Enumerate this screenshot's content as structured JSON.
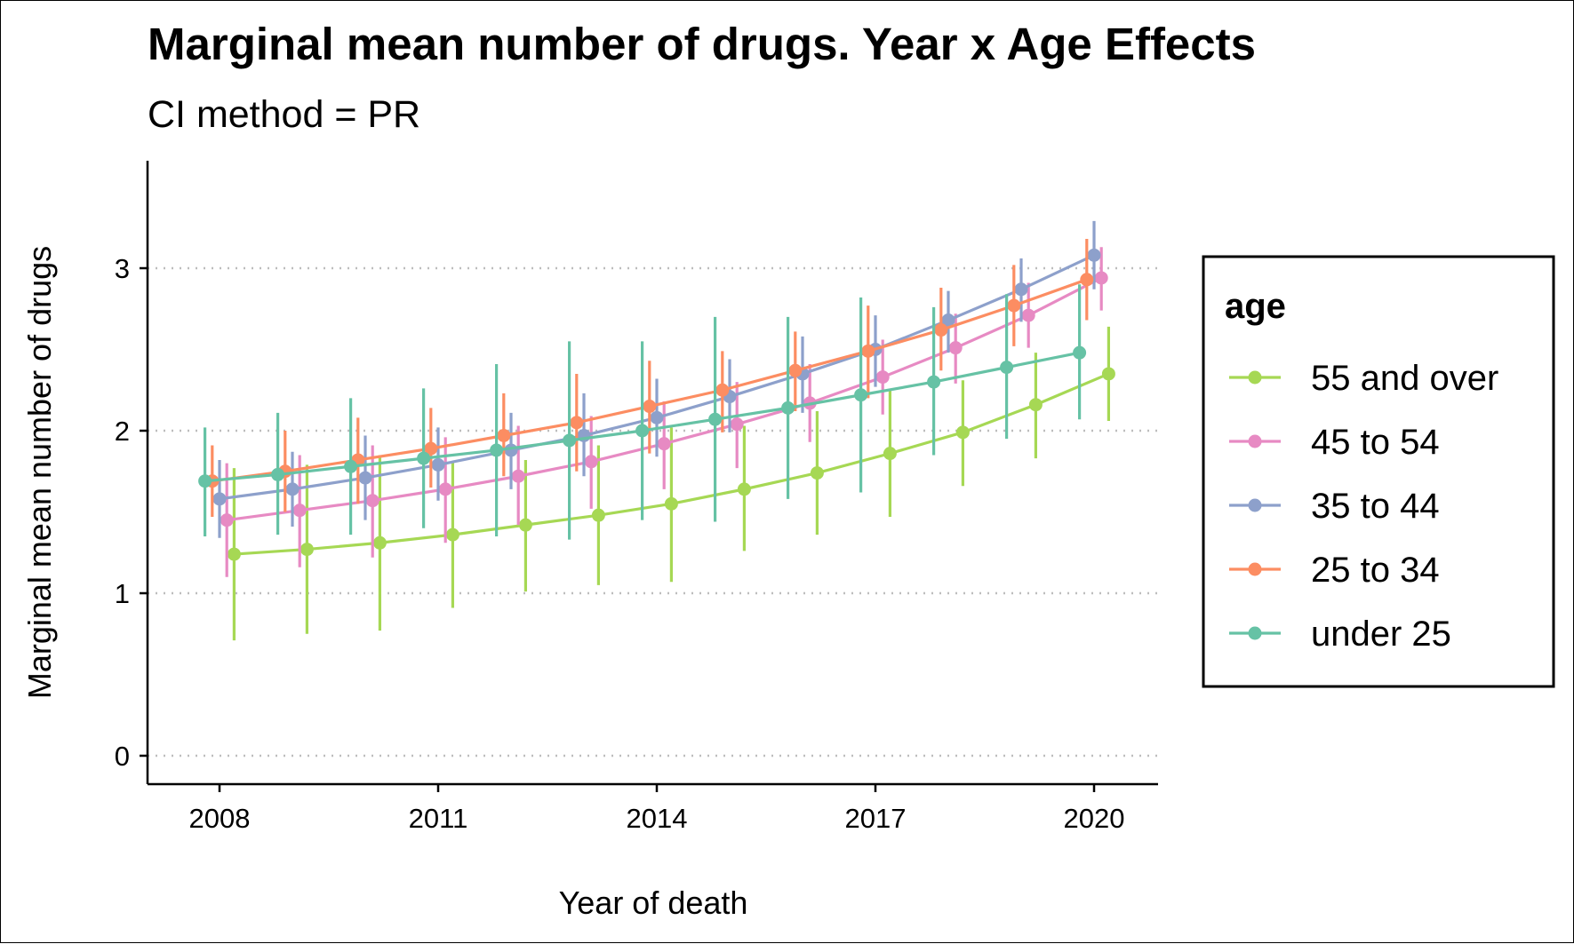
{
  "chart_data": {
    "type": "line",
    "title": "Marginal mean number of drugs. Year x Age Effects",
    "subtitle": "CI method = PR",
    "xlabel": "Year of death",
    "ylabel": "Marginal mean number of drugs",
    "xlim": [
      2007,
      2021
    ],
    "ylim": [
      0,
      3.6
    ],
    "x_ticks": [
      2008,
      2011,
      2014,
      2017,
      2020
    ],
    "x_tick_labels": [
      "2008",
      "2011",
      "2014",
      "2017",
      "2020"
    ],
    "y_ticks": [
      0,
      1,
      2,
      3
    ],
    "y_tick_labels": [
      "0",
      "1",
      "2",
      "3"
    ],
    "grid": "horizontal dotted",
    "error_bars": true,
    "legend": {
      "title": "age",
      "position": "right",
      "entries": [
        "55 and over",
        "45 to 54",
        "35 to 44",
        "25 to 34",
        "under 25"
      ]
    },
    "x": [
      2008,
      2009,
      2010,
      2011,
      2012,
      2013,
      2014,
      2015,
      2016,
      2017,
      2018,
      2019,
      2020
    ],
    "series": [
      {
        "name": "55 and over",
        "color": "#A6D854",
        "dodge": 0.2,
        "values": [
          1.24,
          1.27,
          1.31,
          1.36,
          1.42,
          1.48,
          1.55,
          1.64,
          1.74,
          1.86,
          1.99,
          2.16,
          2.35
        ],
        "lower": [
          0.71,
          0.75,
          0.77,
          0.91,
          1.01,
          1.05,
          1.07,
          1.26,
          1.36,
          1.47,
          1.66,
          1.83,
          2.06
        ],
        "upper": [
          1.77,
          1.79,
          1.85,
          1.81,
          1.82,
          1.91,
          2.02,
          2.03,
          2.12,
          2.25,
          2.31,
          2.48,
          2.64
        ]
      },
      {
        "name": "45 to 54",
        "color": "#E78AC3",
        "dodge": 0.1,
        "values": [
          1.45,
          1.51,
          1.57,
          1.64,
          1.72,
          1.81,
          1.92,
          2.04,
          2.17,
          2.33,
          2.51,
          2.71,
          2.94
        ],
        "lower": [
          1.1,
          1.16,
          1.22,
          1.31,
          1.42,
          1.52,
          1.64,
          1.77,
          1.93,
          2.1,
          2.29,
          2.51,
          2.74
        ],
        "upper": [
          1.8,
          1.85,
          1.91,
          1.96,
          2.03,
          2.09,
          2.18,
          2.3,
          2.41,
          2.56,
          2.72,
          2.91,
          3.13
        ]
      },
      {
        "name": "35 to 44",
        "color": "#8DA0CB",
        "dodge": 0.0,
        "values": [
          1.58,
          1.64,
          1.71,
          1.79,
          1.88,
          1.97,
          2.08,
          2.21,
          2.35,
          2.5,
          2.68,
          2.87,
          3.08
        ],
        "lower": [
          1.34,
          1.41,
          1.45,
          1.57,
          1.64,
          1.72,
          1.84,
          1.99,
          2.11,
          2.27,
          2.48,
          2.67,
          2.87
        ],
        "upper": [
          1.82,
          1.87,
          1.97,
          2.02,
          2.11,
          2.23,
          2.32,
          2.44,
          2.58,
          2.71,
          2.86,
          3.06,
          3.29
        ]
      },
      {
        "name": "25 to 34",
        "color": "#FC8D62",
        "dodge": -0.1,
        "values": [
          1.69,
          1.75,
          1.82,
          1.89,
          1.97,
          2.05,
          2.15,
          2.25,
          2.37,
          2.49,
          2.62,
          2.77,
          2.93
        ],
        "lower": [
          1.47,
          1.5,
          1.55,
          1.65,
          1.72,
          1.75,
          1.86,
          1.99,
          2.12,
          2.2,
          2.37,
          2.52,
          2.68
        ],
        "upper": [
          1.91,
          2.0,
          2.08,
          2.14,
          2.23,
          2.35,
          2.43,
          2.49,
          2.61,
          2.77,
          2.88,
          3.02,
          3.18
        ]
      },
      {
        "name": "under 25",
        "color": "#66C2A5",
        "dodge": -0.2,
        "values": [
          1.69,
          1.73,
          1.78,
          1.83,
          1.88,
          1.94,
          2.0,
          2.07,
          2.14,
          2.22,
          2.3,
          2.39,
          2.48
        ],
        "lower": [
          1.35,
          1.36,
          1.36,
          1.4,
          1.35,
          1.33,
          1.45,
          1.44,
          1.58,
          1.62,
          1.85,
          1.95,
          2.07
        ],
        "upper": [
          2.02,
          2.11,
          2.2,
          2.26,
          2.41,
          2.55,
          2.55,
          2.7,
          2.7,
          2.82,
          2.76,
          2.84,
          2.9
        ]
      }
    ]
  }
}
